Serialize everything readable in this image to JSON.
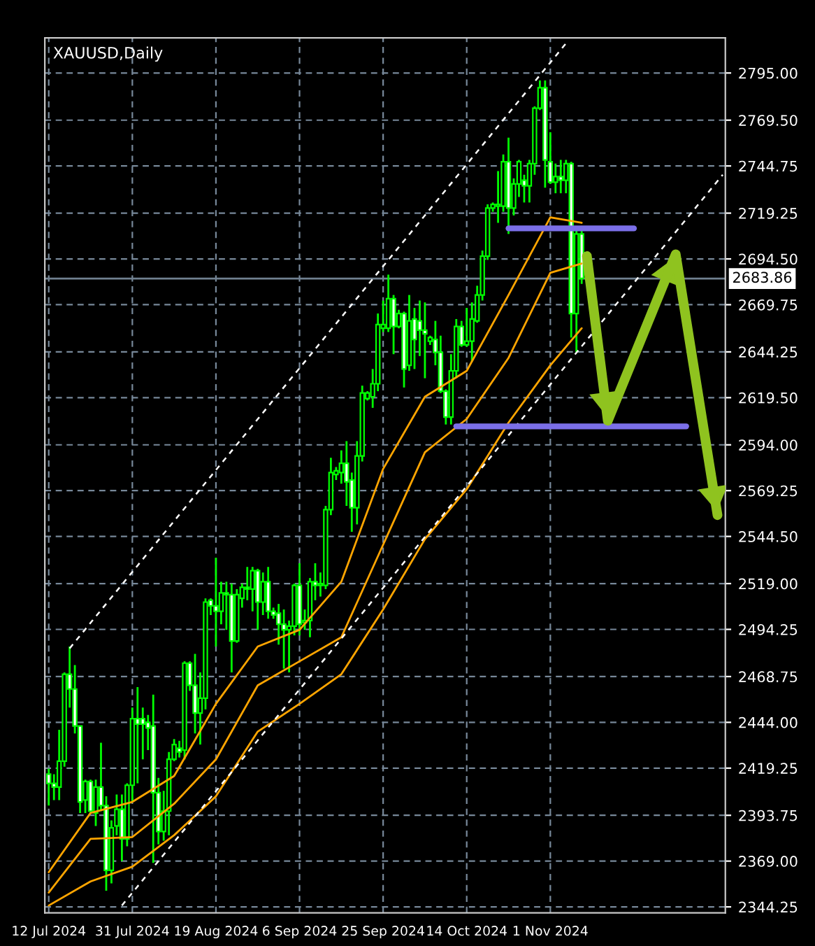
{
  "chart_data": {
    "type": "candlestick",
    "title": "XAUUSD,Daily",
    "categories": [
      "12 Jul 2024",
      null,
      null,
      null,
      null,
      null,
      null,
      null,
      null,
      null,
      null,
      null,
      null,
      null,
      null,
      null,
      "31 Jul 2024",
      null,
      null,
      null,
      null,
      null,
      null,
      null,
      null,
      null,
      null,
      null,
      null,
      null,
      null,
      null,
      "19 Aug 2024",
      null,
      null,
      null,
      null,
      null,
      null,
      null,
      null,
      null,
      null,
      null,
      null,
      null,
      null,
      null,
      "6 Sep 2024",
      null,
      null,
      null,
      null,
      null,
      null,
      null,
      null,
      null,
      null,
      null,
      null,
      null,
      null,
      null,
      "25 Sep 2024",
      null,
      null,
      null,
      null,
      null,
      null,
      null,
      null,
      null,
      null,
      null,
      null,
      null,
      null,
      null,
      "14 Oct 2024",
      null,
      null,
      null,
      null,
      null,
      null,
      null,
      null,
      null,
      null,
      null,
      null,
      null,
      null,
      null,
      "1 Nov 2024",
      null,
      null,
      null,
      null,
      null,
      null,
      null,
      null,
      null,
      null,
      null,
      null,
      null,
      null,
      null,
      null,
      null,
      null,
      null,
      null,
      null,
      null,
      null,
      null,
      null,
      null,
      null,
      null,
      null,
      null,
      null,
      null,
      null
    ],
    "ylim": [
      2341,
      2814
    ],
    "yticks": [
      {
        "value": 2344.25,
        "label": "2344.25"
      },
      {
        "value": 2369,
        "label": "2369.00"
      },
      {
        "value": 2393.75,
        "label": "2393.75"
      },
      {
        "value": 2419.25,
        "label": "2419.25"
      },
      {
        "value": 2444,
        "label": "2444.00"
      },
      {
        "value": 2468.75,
        "label": "2468.75"
      },
      {
        "value": 2494.25,
        "label": "2494.25"
      },
      {
        "value": 2519,
        "label": "2519.00"
      },
      {
        "value": 2544.5,
        "label": "2544.50"
      },
      {
        "value": 2569.25,
        "label": "2569.25"
      },
      {
        "value": 2594,
        "label": "2594.00"
      },
      {
        "value": 2619.5,
        "label": "2619.50"
      },
      {
        "value": 2644.25,
        "label": "2644.25"
      },
      {
        "value": 2669.75,
        "label": "2669.75"
      },
      {
        "value": 2694.5,
        "label": "2694.50"
      },
      {
        "value": 2719.25,
        "label": "2719.25"
      },
      {
        "value": 2744.75,
        "label": "2744.75"
      },
      {
        "value": 2769.5,
        "label": "2769.50"
      },
      {
        "value": 2795,
        "label": "2795.00"
      }
    ],
    "grid": true,
    "ref_lines": [
      {
        "axis": "y",
        "value": 2683.86,
        "label": "2683.86",
        "color": "#708090"
      }
    ],
    "series": [
      {
        "color": "#00ff00",
        "ohlc": [
          [
            2416,
            2419,
            2399,
            2411
          ],
          [
            2411,
            2416,
            2402,
            2409
          ],
          [
            2409,
            2440,
            2402,
            2423
          ],
          [
            2423,
            2471,
            2420,
            2470
          ],
          [
            2470,
            2485,
            2452,
            2462
          ],
          [
            2462,
            2475,
            2438,
            2442
          ],
          [
            2442,
            2442,
            2395,
            2401
          ],
          [
            2402,
            2413,
            2395,
            2412
          ],
          [
            2412,
            2413,
            2395,
            2396
          ],
          [
            2395,
            2413,
            2388,
            2409
          ],
          [
            2409,
            2433,
            2396,
            2399
          ],
          [
            2399,
            2404,
            2353,
            2364
          ],
          [
            2364,
            2391,
            2357,
            2387
          ],
          [
            2388,
            2405,
            2383,
            2397
          ],
          [
            2397,
            2405,
            2369,
            2381
          ],
          [
            2381,
            2411,
            2377,
            2410
          ],
          [
            2410,
            2452,
            2401,
            2446
          ],
          [
            2446,
            2463,
            2411,
            2443
          ],
          [
            2446,
            2452,
            2424,
            2443
          ],
          [
            2444,
            2448,
            2429,
            2441
          ],
          [
            2442,
            2459,
            2368,
            2406
          ],
          [
            2406,
            2414,
            2378,
            2385
          ],
          [
            2385,
            2407,
            2380,
            2396
          ],
          [
            2396,
            2428,
            2383,
            2424
          ],
          [
            2424,
            2435,
            2423,
            2432
          ],
          [
            2430,
            2434,
            2425,
            2428
          ],
          [
            2429,
            2477,
            2424,
            2476
          ],
          [
            2476,
            2477,
            2461,
            2464
          ],
          [
            2464,
            2481,
            2438,
            2449
          ],
          [
            2449,
            2471,
            2432,
            2457
          ],
          [
            2457,
            2511,
            2451,
            2509
          ],
          [
            2510,
            2511,
            2502,
            2507
          ],
          [
            2507,
            2533,
            2485,
            2504
          ],
          [
            2504,
            2520,
            2497,
            2514
          ],
          [
            2514,
            2520,
            2494,
            2513
          ],
          [
            2513,
            2519,
            2471,
            2488
          ],
          [
            2488,
            2516,
            2487,
            2513
          ],
          [
            2511,
            2519,
            2506,
            2517
          ],
          [
            2517,
            2528,
            2510,
            2516
          ],
          [
            2516,
            2528,
            2504,
            2526
          ],
          [
            2526,
            2527,
            2494,
            2509
          ],
          [
            2509,
            2525,
            2502,
            2520
          ],
          [
            2520,
            2528,
            2500,
            2504
          ],
          [
            2504,
            2506,
            2500,
            2502
          ],
          [
            2503,
            2508,
            2486,
            2497
          ],
          [
            2497,
            2505,
            2473,
            2494
          ],
          [
            2494,
            2499,
            2471,
            2496
          ],
          [
            2496,
            2519,
            2491,
            2518
          ],
          [
            2518,
            2530,
            2491,
            2497
          ],
          [
            2498,
            2505,
            2494,
            2499
          ],
          [
            2499,
            2522,
            2490,
            2520
          ],
          [
            2520,
            2530,
            2510,
            2518
          ],
          [
            2518,
            2525,
            2512,
            2519
          ],
          [
            2518,
            2561,
            2516,
            2559
          ],
          [
            2559,
            2587,
            2556,
            2579
          ],
          [
            2578,
            2582,
            2575,
            2580
          ],
          [
            2579,
            2591,
            2573,
            2584
          ],
          [
            2584,
            2596,
            2561,
            2574
          ],
          [
            2575,
            2579,
            2547,
            2560
          ],
          [
            2560,
            2596,
            2551,
            2588
          ],
          [
            2588,
            2626,
            2585,
            2622
          ],
          [
            2619,
            2623,
            2618,
            2622
          ],
          [
            2620,
            2635,
            2614,
            2627
          ],
          [
            2627,
            2665,
            2623,
            2659
          ],
          [
            2657,
            2672,
            2655,
            2659
          ],
          [
            2657,
            2686,
            2655,
            2673
          ],
          [
            2673,
            2675,
            2643,
            2658
          ],
          [
            2658,
            2667,
            2657,
            2665
          ],
          [
            2665,
            2666,
            2625,
            2635
          ],
          [
            2637,
            2675,
            2634,
            2661
          ],
          [
            2662,
            2668,
            2635,
            2651
          ],
          [
            2661,
            2672,
            2642,
            2656
          ],
          [
            2656,
            2671,
            2630,
            2654
          ],
          [
            2650,
            2653,
            2648,
            2652
          ],
          [
            2651,
            2661,
            2637,
            2644
          ],
          [
            2644,
            2653,
            2622,
            2623
          ],
          [
            2623,
            2624,
            2605,
            2609
          ],
          [
            2609,
            2643,
            2605,
            2634
          ],
          [
            2634,
            2662,
            2630,
            2658
          ],
          [
            2658,
            2661,
            2647,
            2648
          ],
          [
            2648,
            2668,
            2647,
            2650
          ],
          [
            2650,
            2671,
            2639,
            2662
          ],
          [
            2661,
            2680,
            2660,
            2675
          ],
          [
            2675,
            2699,
            2672,
            2696
          ],
          [
            2696,
            2724,
            2694,
            2722
          ],
          [
            2722,
            2725,
            2720,
            2724
          ],
          [
            2723,
            2742,
            2714,
            2724
          ],
          [
            2723,
            2751,
            2720,
            2747
          ],
          [
            2747,
            2760,
            2708,
            2722
          ],
          [
            2722,
            2738,
            2718,
            2735
          ],
          [
            2735,
            2748,
            2728,
            2747
          ],
          [
            2737,
            2740,
            2725,
            2734
          ],
          [
            2734,
            2748,
            2725,
            2746
          ],
          [
            2746,
            2777,
            2740,
            2776
          ],
          [
            2776,
            2791,
            2775,
            2787
          ],
          [
            2787,
            2791,
            2733,
            2748
          ],
          [
            2747,
            2763,
            2735,
            2736
          ],
          [
            2736,
            2746,
            2730,
            2739
          ],
          [
            2739,
            2748,
            2730,
            2737
          ],
          [
            2737,
            2748,
            2730,
            2746
          ],
          [
            2746,
            2747,
            2652,
            2665
          ],
          [
            2665,
            2711,
            2644,
            2708
          ],
          [
            2708,
            2711,
            2681,
            2684
          ],
          null,
          null,
          null,
          null,
          null,
          null,
          null,
          null,
          null,
          null,
          null,
          null,
          null,
          null,
          null,
          null,
          null,
          null,
          null,
          null,
          null,
          null,
          null,
          null,
          null,
          null,
          null
        ]
      },
      {
        "type": "line",
        "color": "#ffa500",
        "values": [
          2363,
          null,
          null,
          null,
          null,
          null,
          null,
          null,
          2395,
          null,
          null,
          null,
          null,
          null,
          null,
          null,
          2401,
          null,
          null,
          null,
          null,
          null,
          null,
          null,
          2415,
          null,
          null,
          null,
          null,
          null,
          null,
          null,
          2454,
          null,
          null,
          null,
          null,
          null,
          null,
          null,
          2485,
          null,
          null,
          null,
          null,
          null,
          null,
          null,
          2494,
          null,
          null,
          null,
          null,
          null,
          null,
          null,
          2520,
          null,
          null,
          null,
          null,
          null,
          null,
          null,
          2581,
          null,
          null,
          null,
          null,
          null,
          null,
          null,
          2620,
          null,
          null,
          null,
          null,
          null,
          null,
          null,
          2634,
          null,
          null,
          null,
          null,
          null,
          null,
          null,
          2675,
          null,
          null,
          null,
          null,
          null,
          null,
          null,
          2717,
          null,
          null,
          null,
          null,
          null,
          2714,
          null,
          null,
          null,
          null,
          null,
          null,
          null,
          null,
          null,
          null,
          null,
          null,
          null,
          null,
          null,
          null,
          null,
          null,
          null,
          null,
          null,
          null,
          null,
          null,
          null,
          null,
          null
        ]
      },
      {
        "type": "line",
        "color": "#ffa500",
        "values": [
          2352,
          null,
          null,
          null,
          null,
          null,
          null,
          null,
          2381,
          null,
          null,
          null,
          null,
          null,
          null,
          null,
          2382,
          null,
          null,
          null,
          null,
          null,
          null,
          null,
          2400,
          null,
          null,
          null,
          null,
          null,
          null,
          null,
          2424,
          null,
          null,
          null,
          null,
          null,
          null,
          null,
          2464,
          null,
          null,
          null,
          null,
          null,
          null,
          null,
          2477,
          null,
          null,
          null,
          null,
          null,
          null,
          null,
          2490,
          null,
          null,
          null,
          null,
          null,
          null,
          null,
          2540,
          null,
          null,
          null,
          null,
          null,
          null,
          null,
          2590,
          null,
          null,
          null,
          null,
          null,
          null,
          null,
          2608,
          null,
          null,
          null,
          null,
          null,
          null,
          null,
          2641,
          null,
          null,
          null,
          null,
          null,
          null,
          null,
          2687,
          null,
          null,
          null,
          null,
          null,
          2692,
          null,
          null,
          null,
          null,
          null,
          null,
          null,
          null,
          null,
          null,
          null,
          null,
          null,
          null,
          null,
          null,
          null,
          null,
          null,
          null,
          null,
          null,
          null,
          null,
          null,
          null,
          null
        ]
      },
      {
        "type": "line",
        "color": "#ffa500",
        "values": [
          2345,
          null,
          null,
          null,
          null,
          null,
          null,
          null,
          2358,
          null,
          null,
          null,
          null,
          null,
          null,
          null,
          2366,
          null,
          null,
          null,
          null,
          null,
          null,
          null,
          2383,
          null,
          null,
          null,
          null,
          null,
          null,
          null,
          2404,
          null,
          null,
          null,
          null,
          null,
          null,
          null,
          2439,
          null,
          null,
          null,
          null,
          null,
          null,
          null,
          2454,
          null,
          null,
          null,
          null,
          null,
          null,
          null,
          2470,
          null,
          null,
          null,
          null,
          null,
          null,
          null,
          2505,
          null,
          null,
          null,
          null,
          null,
          null,
          null,
          2543,
          null,
          null,
          null,
          null,
          null,
          null,
          null,
          2570,
          null,
          null,
          null,
          null,
          null,
          null,
          null,
          2606,
          null,
          null,
          null,
          null,
          null,
          null,
          null,
          2637,
          null,
          null,
          null,
          null,
          null,
          2657,
          null,
          null,
          null,
          null,
          null,
          null,
          null,
          null,
          null,
          null,
          null,
          null,
          null,
          null,
          null,
          null,
          null,
          null,
          null,
          null,
          null,
          null,
          null,
          null,
          null,
          null,
          null
        ]
      },
      {
        "type": "line",
        "color": "#ffffff",
        "line_style": "dashed",
        "values": [
          null,
          null,
          null,
          null,
          2484,
          null,
          null,
          null,
          null,
          null,
          null,
          null,
          null,
          null,
          null,
          null,
          null,
          null,
          null,
          null,
          null,
          null,
          null,
          null,
          null,
          null,
          null,
          null,
          null,
          null,
          null,
          null,
          null,
          null,
          null,
          null,
          null,
          null,
          null,
          null,
          null,
          null,
          null,
          null,
          null,
          null,
          null,
          null,
          null,
          null,
          null,
          null,
          null,
          null,
          null,
          null,
          null,
          null,
          null,
          null,
          null,
          null,
          null,
          null,
          null,
          null,
          null,
          null,
          null,
          null,
          null,
          null,
          null,
          null,
          null,
          null,
          null,
          null,
          null,
          null,
          null,
          null,
          null,
          null,
          null,
          null,
          null,
          null,
          null,
          null,
          null,
          null,
          null,
          null,
          null,
          null,
          null,
          null,
          null,
          2811,
          null,
          null,
          null,
          null,
          null,
          null,
          null,
          null,
          null,
          null,
          null,
          null,
          null,
          null,
          null,
          null,
          null,
          null,
          null,
          null,
          null,
          null,
          null,
          null,
          null,
          null,
          null,
          null,
          null,
          null
        ]
      },
      {
        "type": "line",
        "color": "#ffffff",
        "line_style": "dashed",
        "values": [
          null,
          null,
          null,
          null,
          null,
          null,
          null,
          null,
          null,
          null,
          null,
          null,
          null,
          null,
          2345,
          null,
          null,
          null,
          null,
          null,
          null,
          null,
          null,
          null,
          null,
          null,
          null,
          null,
          null,
          null,
          null,
          null,
          null,
          null,
          null,
          null,
          null,
          null,
          null,
          null,
          null,
          null,
          null,
          null,
          null,
          null,
          null,
          null,
          null,
          null,
          null,
          null,
          null,
          null,
          null,
          null,
          null,
          null,
          null,
          null,
          null,
          null,
          null,
          null,
          null,
          null,
          null,
          null,
          null,
          null,
          null,
          null,
          null,
          null,
          null,
          null,
          null,
          null,
          null,
          null,
          null,
          null,
          null,
          null,
          null,
          null,
          null,
          null,
          null,
          null,
          null,
          null,
          null,
          null,
          null,
          null,
          null,
          null,
          null,
          null,
          null,
          null,
          null,
          null,
          null,
          null,
          null,
          null,
          null,
          null,
          null,
          null,
          null,
          null,
          null,
          null,
          null,
          null,
          null,
          null,
          null,
          null,
          null,
          null,
          null,
          null,
          null,
          null,
          null,
          2740
        ]
      },
      {
        "type": "line",
        "color": "#7b6fe8",
        "values": [
          null,
          null,
          null,
          null,
          null,
          null,
          null,
          null,
          null,
          null,
          null,
          null,
          null,
          null,
          null,
          null,
          null,
          null,
          null,
          null,
          null,
          null,
          null,
          null,
          null,
          null,
          null,
          null,
          null,
          null,
          null,
          null,
          null,
          null,
          null,
          null,
          null,
          null,
          null,
          null,
          null,
          null,
          null,
          null,
          null,
          null,
          null,
          null,
          null,
          null,
          null,
          null,
          null,
          null,
          null,
          null,
          null,
          null,
          null,
          null,
          null,
          null,
          null,
          null,
          null,
          null,
          null,
          null,
          null,
          null,
          null,
          null,
          null,
          null,
          null,
          null,
          null,
          null,
          null,
          null,
          null,
          null,
          null,
          null,
          null,
          null,
          null,
          null,
          2711,
          null,
          null,
          null,
          null,
          null,
          null,
          null,
          null,
          null,
          null,
          null,
          null,
          null,
          null,
          null,
          null,
          null,
          null,
          null,
          null,
          null,
          null,
          null,
          2711,
          null,
          null,
          null,
          null,
          null,
          null,
          null,
          null,
          null,
          null,
          null,
          null,
          null,
          null,
          null,
          null,
          null
        ]
      },
      {
        "type": "line",
        "color": "#7b6fe8",
        "values": [
          null,
          null,
          null,
          null,
          null,
          null,
          null,
          null,
          null,
          null,
          null,
          null,
          null,
          null,
          null,
          null,
          null,
          null,
          null,
          null,
          null,
          null,
          null,
          null,
          null,
          null,
          null,
          null,
          null,
          null,
          null,
          null,
          null,
          null,
          null,
          null,
          null,
          null,
          null,
          null,
          null,
          null,
          null,
          null,
          null,
          null,
          null,
          null,
          null,
          null,
          null,
          null,
          null,
          null,
          null,
          null,
          null,
          null,
          null,
          null,
          null,
          null,
          null,
          null,
          null,
          null,
          null,
          null,
          null,
          null,
          null,
          null,
          null,
          null,
          null,
          null,
          null,
          null,
          2604,
          null,
          null,
          null,
          null,
          null,
          null,
          null,
          null,
          null,
          null,
          null,
          null,
          null,
          null,
          null,
          null,
          null,
          null,
          null,
          null,
          null,
          null,
          null,
          null,
          null,
          null,
          null,
          null,
          null,
          null,
          null,
          null,
          null,
          null,
          null,
          null,
          null,
          null,
          null,
          null,
          null,
          null,
          null,
          2604,
          null,
          null,
          null,
          null,
          null,
          null,
          null
        ]
      },
      {
        "type": "line",
        "color": "#8fc31f",
        "values": [
          null,
          null,
          null,
          null,
          null,
          null,
          null,
          null,
          null,
          null,
          null,
          null,
          null,
          null,
          null,
          null,
          null,
          null,
          null,
          null,
          null,
          null,
          null,
          null,
          null,
          null,
          null,
          null,
          null,
          null,
          null,
          null,
          null,
          null,
          null,
          null,
          null,
          null,
          null,
          null,
          null,
          null,
          null,
          null,
          null,
          null,
          null,
          null,
          null,
          null,
          null,
          null,
          null,
          null,
          null,
          null,
          null,
          null,
          null,
          null,
          null,
          null,
          null,
          null,
          null,
          null,
          null,
          null,
          null,
          null,
          null,
          null,
          null,
          null,
          null,
          null,
          null,
          null,
          null,
          null,
          null,
          null,
          null,
          null,
          null,
          null,
          null,
          null,
          null,
          null,
          null,
          null,
          null,
          null,
          null,
          null,
          null,
          null,
          null,
          null,
          null,
          null,
          null,
          2696,
          null,
          null,
          null,
          2607,
          null,
          null,
          null,
          null,
          null,
          null,
          null,
          null,
          null,
          null,
          null,
          null,
          2697,
          null,
          null,
          null,
          null,
          null,
          null,
          null,
          2556,
          null
        ]
      }
    ]
  }
}
